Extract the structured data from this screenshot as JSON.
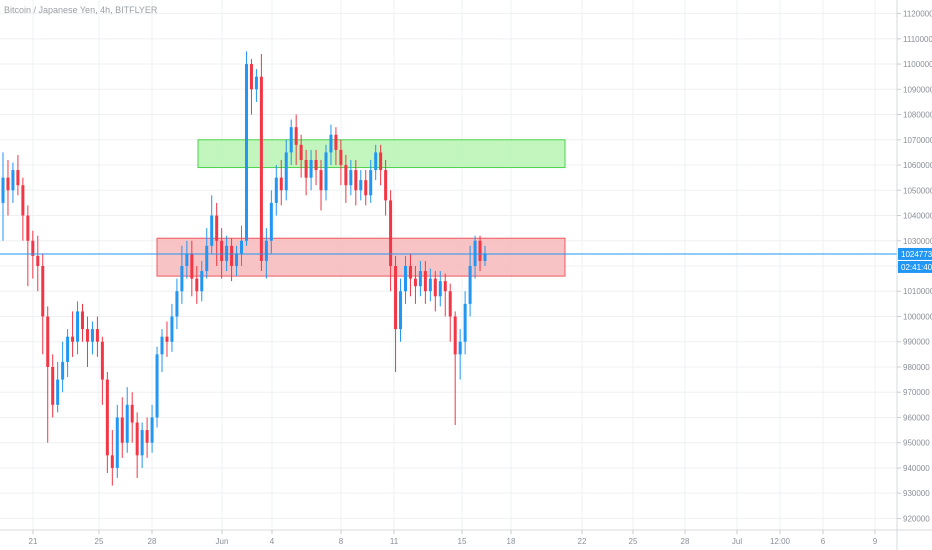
{
  "header": {
    "title": "Bitcoin / Japanese Yen, 4h, BITFLYER"
  },
  "colors": {
    "up": "#2196f3",
    "down": "#f23645",
    "grid": "#eef1f4",
    "axis_text": "#8a8f98",
    "price_line": "#2196f3",
    "green_zone_fill": "#b7f5b3",
    "green_zone_border": "#4cd24c",
    "red_zone_fill": "#f7b8bb",
    "red_zone_border": "#f0585f"
  },
  "price_scale": {
    "ticks": [
      "1120000",
      "1110000",
      "1100000",
      "1090000",
      "1080000",
      "1070000",
      "1060000",
      "1050000",
      "1040000",
      "1030000",
      "1020000",
      "1010000",
      "1000000",
      "990000",
      "980000",
      "970000",
      "960000",
      "950000",
      "940000",
      "930000",
      "920000"
    ]
  },
  "time_scale": {
    "ticks": [
      "21",
      "25",
      "28",
      "Jun",
      "4",
      "8",
      "11",
      "15",
      "18",
      "22",
      "25",
      "28",
      "Jul",
      "12:00",
      "6",
      "9"
    ]
  },
  "labels": {
    "last_price": "1024773",
    "countdown": "02:41:40"
  },
  "chart_data": {
    "type": "candlestick",
    "title": "Bitcoin / Japanese Yen, 4h, BITFLYER",
    "y_range": [
      917000,
      1123000
    ],
    "last_price": 1024773,
    "zones": [
      {
        "name": "resistance",
        "color": "green",
        "y_top": 1070000,
        "y_bottom": 1059000
      },
      {
        "name": "support",
        "color": "red",
        "y_top": 1031000,
        "y_bottom": 1016000
      }
    ],
    "candles": [
      [
        1045000,
        1055000,
        1065000,
        1030000
      ],
      [
        1055000,
        1050000,
        1062000,
        1040000
      ],
      [
        1050000,
        1058000,
        1061000,
        1045000
      ],
      [
        1058000,
        1052000,
        1064000,
        1048000
      ],
      [
        1052000,
        1040000,
        1055000,
        1030000
      ],
      [
        1040000,
        1030000,
        1044000,
        1012000
      ],
      [
        1030000,
        1024000,
        1034000,
        1015000
      ],
      [
        1024000,
        1020000,
        1032000,
        1010000
      ],
      [
        1020000,
        1000000,
        1025000,
        985000
      ],
      [
        1000000,
        980000,
        1004000,
        950000
      ],
      [
        980000,
        965000,
        985000,
        960000
      ],
      [
        965000,
        975000,
        982000,
        962000
      ],
      [
        975000,
        982000,
        990000,
        970000
      ],
      [
        982000,
        992000,
        995000,
        976000
      ],
      [
        992000,
        990000,
        1002000,
        984000
      ],
      [
        990000,
        1002000,
        1006000,
        985000
      ],
      [
        1002000,
        995000,
        1005000,
        990000
      ],
      [
        995000,
        990000,
        1000000,
        980000
      ],
      [
        990000,
        995000,
        998000,
        985000
      ],
      [
        995000,
        990000,
        1000000,
        984000
      ],
      [
        990000,
        975000,
        992000,
        965000
      ],
      [
        975000,
        945000,
        978000,
        938000
      ],
      [
        945000,
        940000,
        955000,
        933000
      ],
      [
        940000,
        960000,
        965000,
        936000
      ],
      [
        960000,
        950000,
        968000,
        944000
      ],
      [
        950000,
        965000,
        972000,
        946000
      ],
      [
        965000,
        958000,
        970000,
        950000
      ],
      [
        958000,
        945000,
        962000,
        936000
      ],
      [
        945000,
        955000,
        958000,
        940000
      ],
      [
        955000,
        950000,
        960000,
        944000
      ],
      [
        950000,
        960000,
        965000,
        946000
      ],
      [
        960000,
        985000,
        988000,
        956000
      ],
      [
        985000,
        992000,
        995000,
        978000
      ],
      [
        992000,
        990000,
        998000,
        984000
      ],
      [
        990000,
        1000000,
        1005000,
        986000
      ],
      [
        1000000,
        1010000,
        1015000,
        995000
      ],
      [
        1010000,
        1020000,
        1028000,
        1005000
      ],
      [
        1020000,
        1025000,
        1030000,
        1015000
      ],
      [
        1025000,
        1015000,
        1030000,
        1008000
      ],
      [
        1015000,
        1010000,
        1020000,
        1005000
      ],
      [
        1010000,
        1018000,
        1022000,
        1006000
      ],
      [
        1018000,
        1028000,
        1035000,
        1015000
      ],
      [
        1028000,
        1040000,
        1048000,
        1025000
      ],
      [
        1040000,
        1030000,
        1045000,
        1020000
      ],
      [
        1030000,
        1022000,
        1035000,
        1015000
      ],
      [
        1022000,
        1028000,
        1032000,
        1018000
      ],
      [
        1028000,
        1020000,
        1031000,
        1014000
      ],
      [
        1020000,
        1025000,
        1028000,
        1016000
      ],
      [
        1025000,
        1030000,
        1036000,
        1020000
      ],
      [
        1030000,
        1100000,
        1105000,
        1028000
      ],
      [
        1100000,
        1090000,
        1102000,
        1080000
      ],
      [
        1090000,
        1095000,
        1098000,
        1085000
      ],
      [
        1095000,
        1022000,
        1104000,
        1018000
      ],
      [
        1022000,
        1030000,
        1035000,
        1015000
      ],
      [
        1030000,
        1045000,
        1050000,
        1025000
      ],
      [
        1045000,
        1055000,
        1060000,
        1040000
      ],
      [
        1055000,
        1050000,
        1062000,
        1044000
      ],
      [
        1050000,
        1065000,
        1070000,
        1046000
      ],
      [
        1065000,
        1075000,
        1078000,
        1060000
      ],
      [
        1075000,
        1068000,
        1080000,
        1060000
      ],
      [
        1068000,
        1062000,
        1072000,
        1055000
      ],
      [
        1062000,
        1055000,
        1066000,
        1048000
      ],
      [
        1055000,
        1062000,
        1066000,
        1050000
      ],
      [
        1062000,
        1058000,
        1066000,
        1052000
      ],
      [
        1058000,
        1050000,
        1062000,
        1042000
      ],
      [
        1050000,
        1065000,
        1068000,
        1046000
      ],
      [
        1065000,
        1072000,
        1076000,
        1060000
      ],
      [
        1072000,
        1066000,
        1075000,
        1060000
      ],
      [
        1066000,
        1060000,
        1070000,
        1052000
      ],
      [
        1060000,
        1052000,
        1064000,
        1045000
      ],
      [
        1052000,
        1058000,
        1062000,
        1048000
      ],
      [
        1058000,
        1050000,
        1062000,
        1044000
      ],
      [
        1050000,
        1054000,
        1058000,
        1046000
      ],
      [
        1054000,
        1048000,
        1058000,
        1044000
      ],
      [
        1048000,
        1058000,
        1062000,
        1045000
      ],
      [
        1058000,
        1065000,
        1068000,
        1054000
      ],
      [
        1065000,
        1058000,
        1068000,
        1052000
      ],
      [
        1058000,
        1046000,
        1062000,
        1040000
      ],
      [
        1046000,
        1020000,
        1050000,
        1010000
      ],
      [
        1020000,
        995000,
        1024000,
        978000
      ],
      [
        995000,
        1010000,
        1015000,
        990000
      ],
      [
        1010000,
        1020000,
        1024000,
        1005000
      ],
      [
        1020000,
        1015000,
        1025000,
        1008000
      ],
      [
        1015000,
        1012000,
        1020000,
        1005000
      ],
      [
        1012000,
        1018000,
        1022000,
        1008000
      ],
      [
        1018000,
        1010000,
        1022000,
        1005000
      ],
      [
        1010000,
        1015000,
        1019000,
        1006000
      ],
      [
        1015000,
        1008000,
        1018000,
        1002000
      ],
      [
        1008000,
        1014000,
        1018000,
        1004000
      ],
      [
        1014000,
        1010000,
        1017000,
        1000000
      ],
      [
        1010000,
        1000000,
        1013000,
        990000
      ],
      [
        1000000,
        985000,
        1002000,
        957000
      ],
      [
        985000,
        990000,
        995000,
        975000
      ],
      [
        990000,
        1005000,
        1010000,
        985000
      ],
      [
        1005000,
        1020000,
        1028000,
        1000000
      ],
      [
        1020000,
        1030000,
        1032000,
        1015000
      ],
      [
        1030000,
        1022000,
        1032000,
        1018000
      ],
      [
        1022000,
        1025000,
        1028000,
        1020000
      ]
    ]
  }
}
